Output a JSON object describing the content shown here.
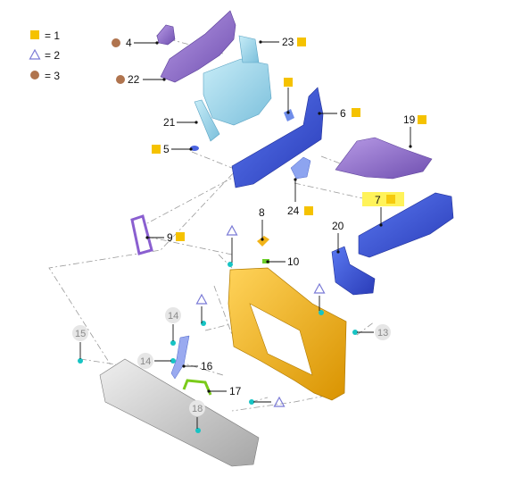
{
  "legend": [
    {
      "symbol": "square",
      "text": "= 1",
      "color": "#f5c200"
    },
    {
      "symbol": "triangle",
      "text": "= 2",
      "color": "#7a7ad6"
    },
    {
      "symbol": "circle",
      "text": "= 3",
      "color": "#b0744e"
    }
  ],
  "labels": {
    "p4": "4",
    "p22": "22",
    "p23": "23",
    "p21": "21",
    "p5": "5",
    "p6": "6",
    "p19": "19",
    "p24": "24",
    "p7": "7",
    "p9": "9",
    "p8": "8",
    "p20": "20",
    "p10": "10",
    "p15": "15",
    "p14a": "14",
    "p14b": "14",
    "p13": "13",
    "p16": "16",
    "p17": "17",
    "p18": "18"
  },
  "colors": {
    "accent_square": "#f5c200",
    "triangle": "#7a7ad6",
    "circle": "#b0744e",
    "highlight": "#fff35a",
    "part_blue": "#3a57d9",
    "part_purple": "#9a6fd4",
    "part_lightblue": "#9fd6ea",
    "part_yellow": "#f2b418",
    "part_gray": "#c8c8c8",
    "cyan_dot": "#17c4c4"
  }
}
